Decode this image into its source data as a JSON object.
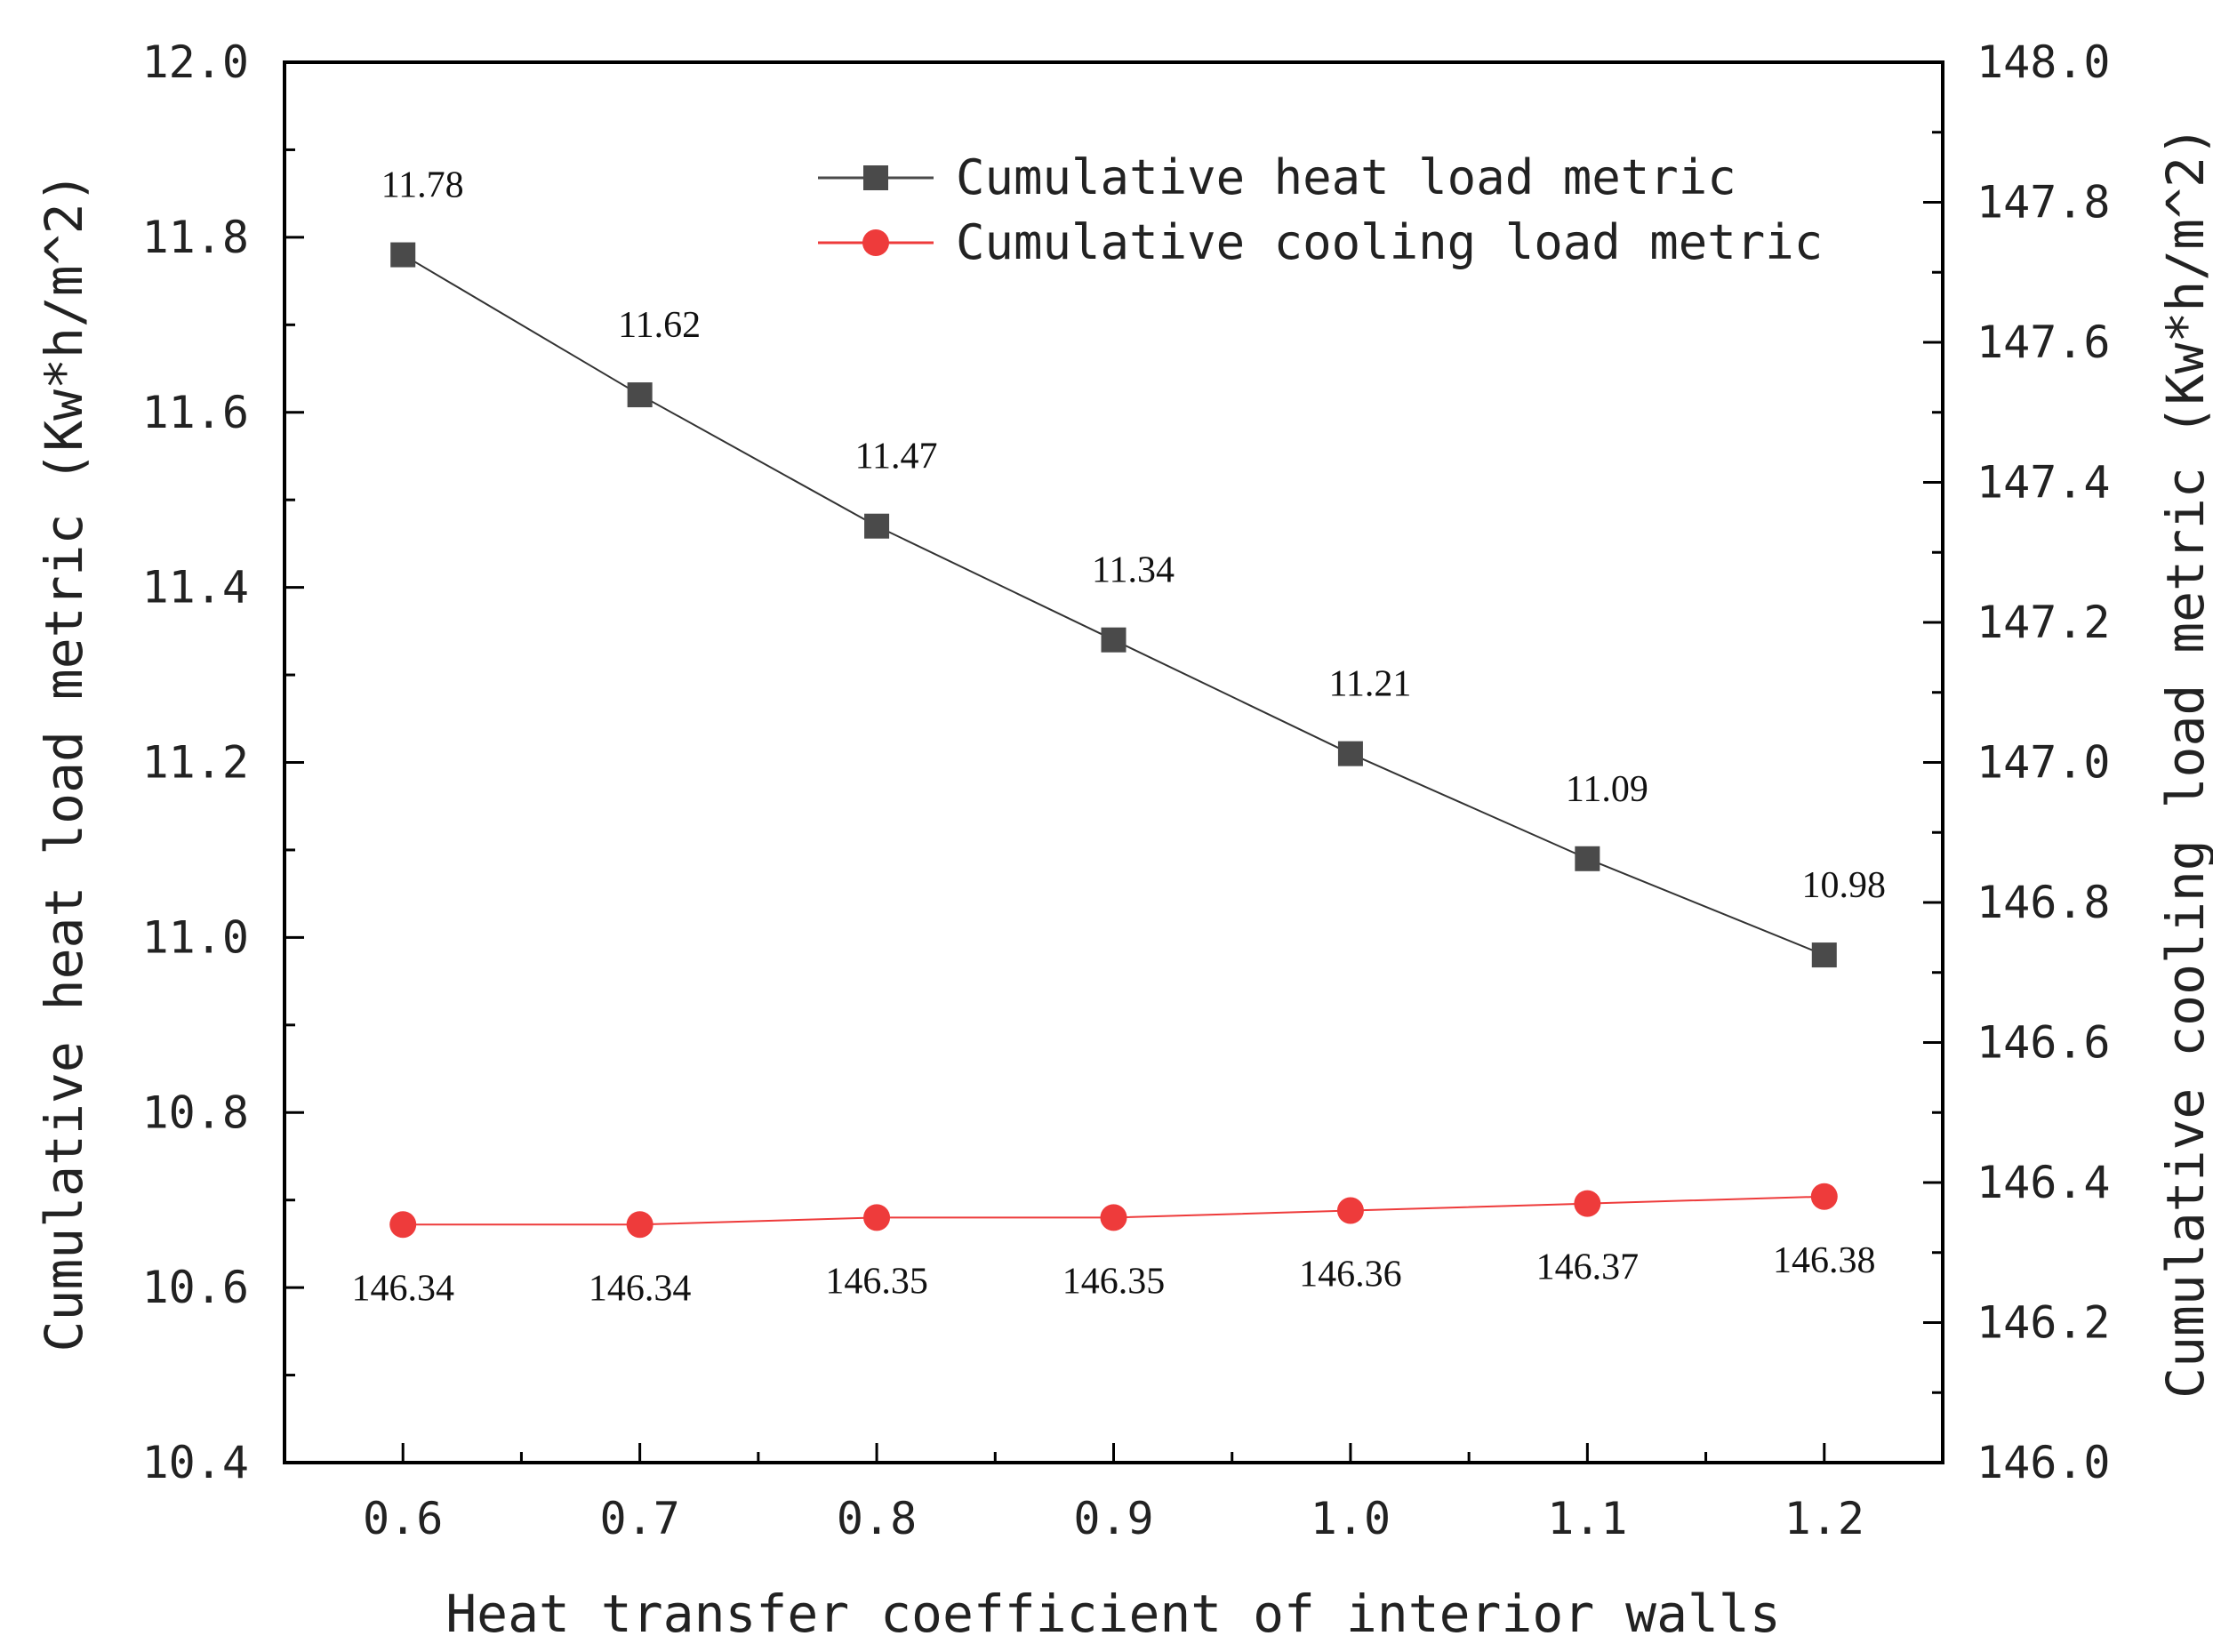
{
  "chart_data": {
    "type": "line",
    "xlabel": "Heat transfer coefficient of interior walls",
    "ylabel_left": "Cumulative heat load metric (Kw*h/m^2)",
    "ylabel_right": "Cumulative cooling load metric (Kw*h/m^2)",
    "x": [
      0.6,
      0.7,
      0.8,
      0.9,
      1.0,
      1.1,
      1.2
    ],
    "x_tick_labels": [
      "0.6",
      "0.7",
      "0.8",
      "0.9",
      "1.0",
      "1.1",
      "1.2"
    ],
    "xlim": [
      0.55,
      1.25
    ],
    "ylim_left": [
      10.4,
      12.0
    ],
    "ylim_right": [
      146.0,
      148.0
    ],
    "y_left_tick_labels": [
      "10.4",
      "10.6",
      "10.8",
      "11.0",
      "11.2",
      "11.4",
      "11.6",
      "11.8",
      "12.0"
    ],
    "y_right_tick_labels": [
      "146.0",
      "146.2",
      "146.4",
      "146.6",
      "146.8",
      "147.0",
      "147.2",
      "147.4",
      "147.6",
      "147.8",
      "148.0"
    ],
    "grid": false,
    "legend_position": "top-right",
    "series": [
      {
        "name": "Cumulative heat load metric",
        "axis": "left",
        "marker": "square",
        "color": "#4a4a4a",
        "values": [
          11.78,
          11.62,
          11.47,
          11.34,
          11.21,
          11.09,
          10.98
        ],
        "labels": [
          "11.78",
          "11.62",
          "11.47",
          "11.34",
          "11.21",
          "11.09",
          "10.98"
        ]
      },
      {
        "name": "Cumulative cooling load metric",
        "axis": "right",
        "marker": "circle",
        "color": "#ee3b3b",
        "values": [
          146.34,
          146.34,
          146.35,
          146.35,
          146.36,
          146.37,
          146.38
        ],
        "labels": [
          "146.34",
          "146.34",
          "146.35",
          "146.35",
          "146.36",
          "146.37",
          "146.38"
        ]
      }
    ]
  }
}
